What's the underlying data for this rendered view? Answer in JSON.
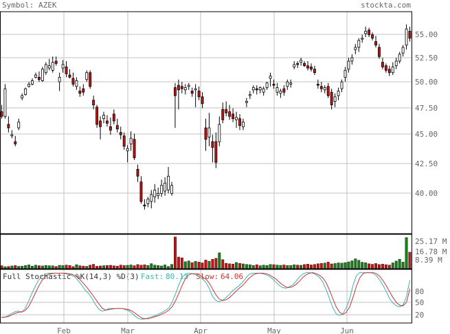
{
  "header": {
    "symbol_label": "Symbol: AZEK",
    "brand": "stockta.com"
  },
  "colors": {
    "up": "#1a7f1a",
    "down": "#cc1111",
    "grid": "#c0c0c0",
    "frame": "#000000",
    "text": "#666666",
    "fast": "#39b3b3",
    "slow": "#cc3333"
  },
  "chart_data": [
    {
      "type": "candlestick",
      "title": "",
      "x_months": [
        "Feb",
        "Mar",
        "Apr",
        "May",
        "Jun"
      ],
      "y_ticks": [
        "55.00",
        "52.50",
        "50.00",
        "47.50",
        "45.00",
        "42.50",
        "40.00"
      ],
      "ylim": [
        37.0,
        56.3
      ],
      "grid": true,
      "candles": [
        [
          47.6,
          48.2,
          47.0,
          47.2
        ],
        [
          47.2,
          50.0,
          47.0,
          49.6
        ],
        [
          46.5,
          47.2,
          45.8,
          46.2
        ],
        [
          45.5,
          46.0,
          45.3,
          45.6
        ],
        [
          45.0,
          45.5,
          44.6,
          44.8
        ],
        [
          46.2,
          47.0,
          46.0,
          46.7
        ],
        [
          48.8,
          49.2,
          48.6,
          49.0
        ],
        [
          49.1,
          49.7,
          49.0,
          49.6
        ],
        [
          49.8,
          50.2,
          49.7,
          50.0
        ],
        [
          50.0,
          50.5,
          49.9,
          50.3
        ],
        [
          50.6,
          51.0,
          50.5,
          50.8
        ],
        [
          50.6,
          51.1,
          50.2,
          50.4
        ],
        [
          50.3,
          51.5,
          50.2,
          51.3
        ],
        [
          51.0,
          51.9,
          50.8,
          51.7
        ],
        [
          51.4,
          52.2,
          51.2,
          51.6
        ],
        [
          51.2,
          52.4,
          51.0,
          51.9
        ],
        [
          52.0,
          52.4,
          51.6,
          51.8
        ],
        [
          50.2,
          51.0,
          49.4,
          50.6
        ],
        [
          51.4,
          52.1,
          51.0,
          51.7
        ],
        [
          51.5,
          52.0,
          50.6,
          50.9
        ],
        [
          50.8,
          51.3,
          50.5,
          50.6
        ],
        [
          50.5,
          51.0,
          49.8,
          50.0
        ],
        [
          49.8,
          50.6,
          49.5,
          50.3
        ],
        [
          49.4,
          49.8,
          48.9,
          49.2
        ],
        [
          49.6,
          50.0,
          49.0,
          49.3
        ],
        [
          50.4,
          51.2,
          50.2,
          51.0
        ],
        [
          51.0,
          51.2,
          49.6,
          49.8
        ],
        [
          48.6,
          49.0,
          47.8,
          48.2
        ],
        [
          48.0,
          48.2,
          46.2,
          46.5
        ],
        [
          46.8,
          47.2,
          45.2,
          46.3
        ],
        [
          47.0,
          47.6,
          46.6,
          47.3
        ],
        [
          46.8,
          47.3,
          46.3,
          46.6
        ],
        [
          46.3,
          47.1,
          45.6,
          46.0
        ],
        [
          47.4,
          47.8,
          46.5,
          46.8
        ],
        [
          46.4,
          47.0,
          45.8,
          46.1
        ],
        [
          45.8,
          46.3,
          45.2,
          45.6
        ],
        [
          45.5,
          45.8,
          44.3,
          44.6
        ],
        [
          44.2,
          44.7,
          43.2,
          44.4
        ],
        [
          44.8,
          45.9,
          44.2,
          45.3
        ],
        [
          45.2,
          45.7,
          43.4,
          43.6
        ],
        [
          42.6,
          43.0,
          41.5,
          42.0
        ],
        [
          41.5,
          42.0,
          39.6,
          39.8
        ],
        [
          39.5,
          40.0,
          39.1,
          39.4
        ],
        [
          39.6,
          40.2,
          39.3,
          40.0
        ],
        [
          39.8,
          40.8,
          39.2,
          40.4
        ],
        [
          40.2,
          41.3,
          39.7,
          40.8
        ],
        [
          40.3,
          41.0,
          40.0,
          40.5
        ],
        [
          40.5,
          41.7,
          40.2,
          41.2
        ],
        [
          40.7,
          41.9,
          40.3,
          41.4
        ],
        [
          40.8,
          42.8,
          40.5,
          42.0
        ],
        [
          40.5,
          41.5,
          40.3,
          41.2
        ],
        [
          49.7,
          50.1,
          46.2,
          49.0
        ],
        [
          49.9,
          50.4,
          47.8,
          49.5
        ],
        [
          49.8,
          50.2,
          49.2,
          49.6
        ],
        [
          49.5,
          50.0,
          49.1,
          49.7
        ],
        [
          49.8,
          50.1,
          49.5,
          49.9
        ],
        [
          49.4,
          49.7,
          48.9,
          49.2
        ],
        [
          49.5,
          50.0,
          48.0,
          49.6
        ],
        [
          49.4,
          49.8,
          48.6,
          48.9
        ],
        [
          48.9,
          49.3,
          47.9,
          48.3
        ],
        [
          46.2,
          47.0,
          44.2,
          45.2
        ],
        [
          45.4,
          47.5,
          44.6,
          46.2
        ],
        [
          45.0,
          45.6,
          43.2,
          44.5
        ],
        [
          45.0,
          45.8,
          42.7,
          43.2
        ],
        [
          45.0,
          47.2,
          44.6,
          46.5
        ],
        [
          47.8,
          48.4,
          46.6,
          46.9
        ],
        [
          47.8,
          48.5,
          47.2,
          47.5
        ],
        [
          47.6,
          48.2,
          46.9,
          47.2
        ],
        [
          47.4,
          47.9,
          46.7,
          47.0
        ],
        [
          46.9,
          47.6,
          46.2,
          47.1
        ],
        [
          47.0,
          47.4,
          46.0,
          46.4
        ],
        [
          46.3,
          47.0,
          46.0,
          46.7
        ],
        [
          48.4,
          48.8,
          48.0,
          48.5
        ],
        [
          49.0,
          49.4,
          48.7,
          49.1
        ],
        [
          49.5,
          49.9,
          49.2,
          49.7
        ],
        [
          49.6,
          49.9,
          49.1,
          49.5
        ],
        [
          49.5,
          49.8,
          49.2,
          49.7
        ],
        [
          49.3,
          49.8,
          49.0,
          49.6
        ],
        [
          49.7,
          50.2,
          49.5,
          50.1
        ],
        [
          50.5,
          51.0,
          49.8,
          50.7
        ],
        [
          50.0,
          50.4,
          49.6,
          49.9
        ],
        [
          49.3,
          50.1,
          49.0,
          49.7
        ],
        [
          49.2,
          49.6,
          48.8,
          49.4
        ],
        [
          49.6,
          49.9,
          49.0,
          49.3
        ],
        [
          49.8,
          50.4,
          49.5,
          50.2
        ],
        [
          50.0,
          50.4,
          49.7,
          50.1
        ],
        [
          51.5,
          52.0,
          51.3,
          51.7
        ],
        [
          51.8,
          52.0,
          51.4,
          51.7
        ],
        [
          51.9,
          52.3,
          51.6,
          52.1
        ],
        [
          51.8,
          52.0,
          51.5,
          51.6
        ],
        [
          51.6,
          52.0,
          51.2,
          51.4
        ],
        [
          51.5,
          51.8,
          51.1,
          51.3
        ],
        [
          51.3,
          51.6,
          50.8,
          51.0
        ],
        [
          50.0,
          50.4,
          49.6,
          49.9
        ],
        [
          49.8,
          50.2,
          49.3,
          49.6
        ],
        [
          49.5,
          49.9,
          49.2,
          49.7
        ],
        [
          49.8,
          50.1,
          48.8,
          49.0
        ],
        [
          49.3,
          49.6,
          47.8,
          48.2
        ],
        [
          48.5,
          49.2,
          48.0,
          48.9
        ],
        [
          49.0,
          49.7,
          48.6,
          49.4
        ],
        [
          49.6,
          50.4,
          49.3,
          50.2
        ],
        [
          50.6,
          51.5,
          50.2,
          51.2
        ],
        [
          51.3,
          52.3,
          51.0,
          52.0
        ],
        [
          52.0,
          52.6,
          51.7,
          52.3
        ],
        [
          53.0,
          53.5,
          52.6,
          53.2
        ],
        [
          53.2,
          54.0,
          52.8,
          53.8
        ],
        [
          53.9,
          54.3,
          53.6,
          54.0
        ],
        [
          54.4,
          55.0,
          54.1,
          54.6
        ],
        [
          54.7,
          54.9,
          54.1,
          54.3
        ],
        [
          54.3,
          54.5,
          53.8,
          54.0
        ],
        [
          53.7,
          54.2,
          53.2,
          53.4
        ],
        [
          53.2,
          53.5,
          52.2,
          52.4
        ],
        [
          51.9,
          52.3,
          51.3,
          51.5
        ],
        [
          51.6,
          51.8,
          51.0,
          51.2
        ],
        [
          51.3,
          51.6,
          50.7,
          51.0
        ],
        [
          51.0,
          51.9,
          50.8,
          51.5
        ],
        [
          51.6,
          52.3,
          51.3,
          52.0
        ],
        [
          52.0,
          52.8,
          51.8,
          52.6
        ],
        [
          52.7,
          53.4,
          52.4,
          53.2
        ],
        [
          53.4,
          55.2,
          53.0,
          54.8
        ],
        [
          54.6,
          55.0,
          53.7,
          54.0
        ]
      ]
    },
    {
      "type": "bar",
      "title": "",
      "y_ticks": [
        "25.17 M",
        "16.78 M",
        "8.39 M"
      ],
      "ylim": [
        0,
        27.0
      ],
      "volumes": [
        2.4,
        1.6,
        1.8,
        2.2,
        2.5,
        1.9,
        2.0,
        2.6,
        3.0,
        2.1,
        2.8,
        2.4,
        2.2,
        2.6,
        2.4,
        2.3,
        1.8,
        2.7,
        2.5,
        2.9,
        2.6,
        1.7,
        3.2,
        2.4,
        2.1,
        1.9,
        2.8,
        3.5,
        1.9,
        2.2,
        2.4,
        2.6,
        2.7,
        2.3,
        2.1,
        2.9,
        2.5,
        2.7,
        3.0,
        2.4,
        3.3,
        2.8,
        3.1,
        2.6,
        4.0,
        2.9,
        2.5,
        2.2,
        3.0,
        1.8,
        3.4,
        25.0,
        9.2,
        8.6,
        5.5,
        6.1,
        4.8,
        5.8,
        5.2,
        4.6,
        6.8,
        5.9,
        7.4,
        8.2,
        12.5,
        7.2,
        4.3,
        3.9,
        3.7,
        4.9,
        4.2,
        3.8,
        3.4,
        3.1,
        2.6,
        3.2,
        2.4,
        2.8,
        2.6,
        3.4,
        3.2,
        2.9,
        2.7,
        3.0,
        2.5,
        2.6,
        3.1,
        2.9,
        2.7,
        3.3,
        3.6,
        3.0,
        3.4,
        3.9,
        4.2,
        4.5,
        5.2,
        3.8,
        4.1,
        4.6,
        4.4,
        4.8,
        5.4,
        6.2,
        7.8,
        6.6,
        5.1,
        4.7,
        3.9,
        3.5,
        4.1,
        3.3,
        3.6,
        3.2,
        2.9,
        4.6,
        6.0,
        7.5,
        5.2,
        24.5,
        13.0
      ]
    },
    {
      "type": "line",
      "title": "Full Stochastic %K(14,3) %D(3)",
      "legend": {
        "fast_label": "Fast:",
        "fast_value": "80.13",
        "slow_label": "Slow:",
        "slow_value": "64.06"
      },
      "y_ticks": [
        "80",
        "50",
        "20"
      ],
      "ylim": [
        0,
        100
      ],
      "k": [
        10,
        11,
        14,
        18,
        21,
        22,
        20,
        27,
        40,
        55,
        68,
        80,
        87,
        91,
        93,
        93,
        93,
        93,
        93,
        92,
        91,
        89,
        85,
        78,
        70,
        61,
        55,
        46,
        35,
        26,
        22,
        24,
        27,
        27,
        27,
        27,
        27,
        25,
        23,
        18,
        12,
        8,
        7,
        8,
        10,
        12,
        14,
        17,
        20,
        24,
        28,
        40,
        55,
        72,
        86,
        91,
        93,
        92,
        90,
        87,
        82,
        76,
        65,
        50,
        42,
        40,
        42,
        47,
        53,
        60,
        65,
        70,
        76,
        84,
        91,
        93,
        93,
        93,
        92,
        90,
        87,
        82,
        76,
        70,
        66,
        65,
        68,
        71,
        78,
        86,
        91,
        94,
        94,
        93,
        90,
        85,
        76,
        62,
        45,
        28,
        17,
        14,
        18,
        28,
        45,
        70,
        88,
        94,
        94,
        94,
        94,
        93,
        88,
        80,
        70,
        58,
        45,
        37,
        32,
        30,
        34,
        50,
        80
      ],
      "d": [
        11,
        11,
        12,
        15,
        18,
        20,
        21,
        23,
        30,
        42,
        55,
        68,
        79,
        86,
        91,
        92,
        93,
        93,
        93,
        93,
        92,
        91,
        88,
        84,
        77,
        70,
        62,
        54,
        45,
        36,
        28,
        24,
        25,
        26,
        27,
        27,
        27,
        26,
        25,
        22,
        18,
        13,
        9,
        8,
        8,
        10,
        12,
        14,
        17,
        20,
        24,
        31,
        42,
        56,
        71,
        84,
        90,
        92,
        92,
        90,
        86,
        82,
        75,
        64,
        53,
        45,
        42,
        43,
        47,
        53,
        59,
        65,
        70,
        77,
        84,
        89,
        92,
        93,
        93,
        92,
        90,
        86,
        82,
        76,
        71,
        67,
        66,
        68,
        72,
        78,
        85,
        90,
        93,
        94,
        92,
        89,
        84,
        75,
        61,
        45,
        30,
        20,
        16,
        20,
        30,
        48,
        68,
        84,
        92,
        94,
        94,
        94,
        92,
        87,
        79,
        69,
        58,
        47,
        38,
        33,
        32,
        39,
        64
      ]
    }
  ]
}
